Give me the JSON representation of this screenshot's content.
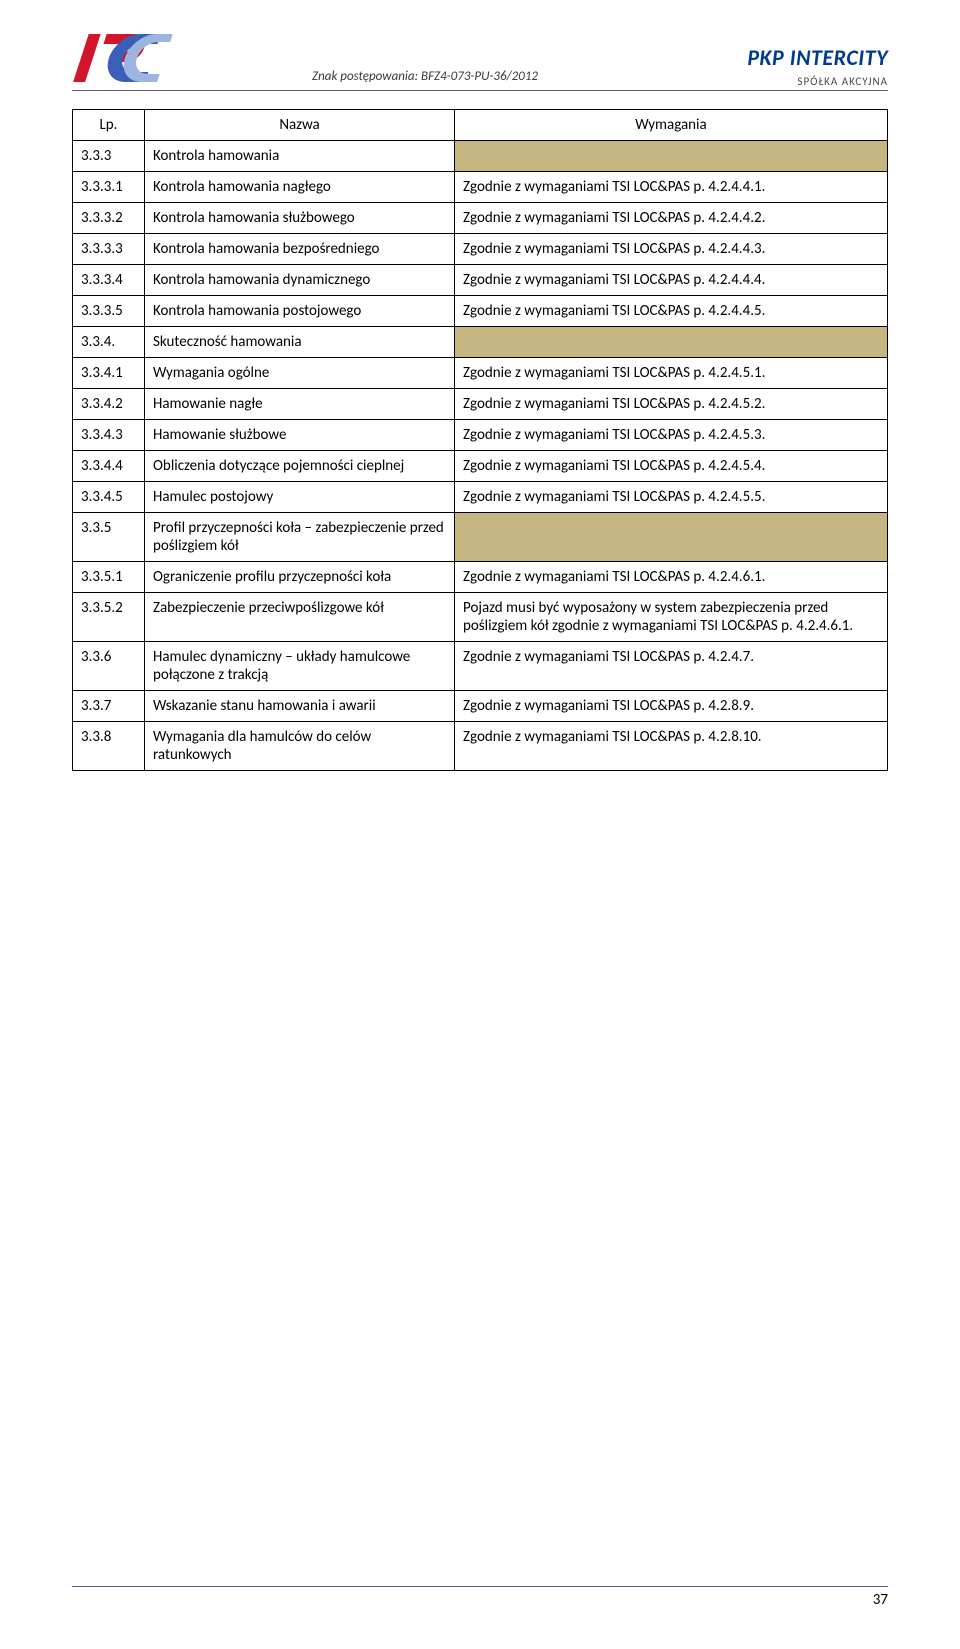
{
  "header": {
    "znak_label": "Znak postępowania: BFZ4-073-PU-36/2012",
    "brand_top": "PKP INTERCITY",
    "brand_sub": "SPÓŁKA  AKCYJNA"
  },
  "colors": {
    "section_bg": "#c4b581",
    "border": "#000000",
    "header_rule": "#5b5b8f",
    "brand_color": "#003a8c",
    "logo_red": "#d4142a",
    "logo_blue": "#3a5fb8",
    "logo_lightblue": "#9db3e0"
  },
  "table": {
    "headers": {
      "lp": "Lp.",
      "nazwa": "Nazwa",
      "wymagania": "Wymagania"
    },
    "rows": [
      {
        "num": "3.3.3",
        "name": "Kontrola hamowania",
        "desc": "",
        "section": true
      },
      {
        "num": "3.3.3.1",
        "name": "Kontrola hamowania nagłego",
        "desc": "Zgodnie z wymaganiami TSI LOC&PAS p. 4.2.4.4.1."
      },
      {
        "num": "3.3.3.2",
        "name": "Kontrola hamowania służbowego",
        "desc": "Zgodnie z wymaganiami TSI LOC&PAS p. 4.2.4.4.2."
      },
      {
        "num": "3.3.3.3",
        "name": "Kontrola hamowania bezpośredniego",
        "desc": "Zgodnie z wymaganiami TSI LOC&PAS p. 4.2.4.4.3."
      },
      {
        "num": "3.3.3.4",
        "name": "Kontrola hamowania dynamicznego",
        "desc": "Zgodnie z wymaganiami TSI LOC&PAS p. 4.2.4.4.4."
      },
      {
        "num": "3.3.3.5",
        "name": "Kontrola hamowania postojowego",
        "desc": "Zgodnie z wymaganiami TSI LOC&PAS p. 4.2.4.4.5."
      },
      {
        "num": "3.3.4.",
        "name": "Skuteczność hamowania",
        "desc": "",
        "section": true
      },
      {
        "num": "3.3.4.1",
        "name": "Wymagania ogólne",
        "desc": "Zgodnie z wymaganiami TSI LOC&PAS p. 4.2.4.5.1."
      },
      {
        "num": "3.3.4.2",
        "name": "Hamowanie nagłe",
        "desc": "Zgodnie z wymaganiami TSI LOC&PAS p. 4.2.4.5.2."
      },
      {
        "num": "3.3.4.3",
        "name": "Hamowanie służbowe",
        "desc": "Zgodnie z wymaganiami TSI LOC&PAS p. 4.2.4.5.3."
      },
      {
        "num": "3.3.4.4",
        "name": "Obliczenia dotyczące pojemności cieplnej",
        "desc": "Zgodnie z wymaganiami TSI LOC&PAS p. 4.2.4.5.4."
      },
      {
        "num": "3.3.4.5",
        "name": "Hamulec postojowy",
        "desc": "Zgodnie z wymaganiami TSI LOC&PAS p. 4.2.4.5.5."
      },
      {
        "num": "3.3.5",
        "name": "Profil przyczepności koła – zabezpieczenie przed poślizgiem kół",
        "desc": "",
        "section": true
      },
      {
        "num": "3.3.5.1",
        "name": "Ograniczenie profilu przyczepności koła",
        "desc": "Zgodnie z wymaganiami TSI LOC&PAS p. 4.2.4.6.1."
      },
      {
        "num": "3.3.5.2",
        "name": "Zabezpieczenie przeciwpoślizgowe kół",
        "desc": "Pojazd musi być wyposażony w system zabezpieczenia przed poślizgiem kół zgodnie z wymaganiami TSI LOC&PAS p. 4.2.4.6.1."
      },
      {
        "num": "3.3.6",
        "name": "Hamulec dynamiczny – układy hamulcowe połączone z trakcją",
        "desc": "Zgodnie z wymaganiami TSI LOC&PAS p. 4.2.4.7."
      },
      {
        "num": "3.3.7",
        "name": "Wskazanie stanu hamowania i awarii",
        "desc": "Zgodnie z wymaganiami TSI LOC&PAS p. 4.2.8.9."
      },
      {
        "num": "3.3.8",
        "name": "Wymagania dla hamulców do celów ratunkowych",
        "desc": "Zgodnie z wymaganiami TSI LOC&PAS p. 4.2.8.10."
      }
    ]
  },
  "page_number": "37"
}
